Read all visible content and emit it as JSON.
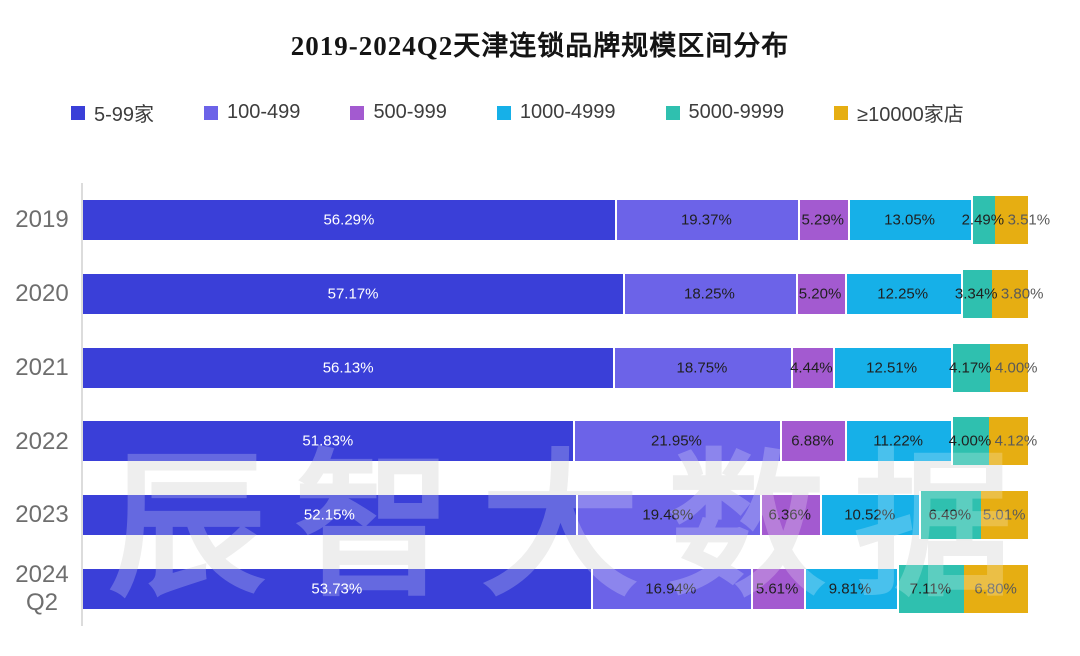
{
  "title": "2019-2024Q2天津连锁品牌规模区间分布",
  "watermark": "辰智大数据",
  "colors": {
    "axis_line": "#dcdcdc",
    "category_label": "#6e6e6e",
    "legend_text": "#3d3d3d",
    "label_on_first": "#ffffff",
    "label_on_mid": "#1f1f1f",
    "label_on_last": "#595959"
  },
  "chart_data": {
    "type": "bar",
    "stacked": true,
    "orientation": "horizontal",
    "title": "2019-2024Q2天津连锁品牌规模区间分布",
    "xlabel": "",
    "ylabel": "",
    "xlim": [
      0,
      100
    ],
    "grid": false,
    "legend_position": "top",
    "value_suffix": "%",
    "categories": [
      "2019",
      "2020",
      "2021",
      "2022",
      "2023",
      "2024\nQ2"
    ],
    "series": [
      {
        "name": "5-99家",
        "color": "#3a3fd8",
        "values": [
          56.29,
          57.17,
          56.13,
          51.83,
          52.15,
          53.73
        ]
      },
      {
        "name": "100-499",
        "color": "#6c63e8",
        "values": [
          19.37,
          18.25,
          18.75,
          21.95,
          19.48,
          16.94
        ]
      },
      {
        "name": "500-999",
        "color": "#a35ad0",
        "values": [
          5.29,
          5.2,
          4.44,
          6.88,
          6.36,
          5.61
        ]
      },
      {
        "name": "1000-4999",
        "color": "#16b0e8",
        "values": [
          13.05,
          12.25,
          12.51,
          11.22,
          10.52,
          9.81
        ]
      },
      {
        "name": "5000-9999",
        "color": "#2fc0af",
        "values": [
          2.49,
          3.34,
          4.17,
          4.0,
          6.49,
          7.11
        ]
      },
      {
        "name": "≥10000家店",
        "color": "#e6ae12",
        "values": [
          3.51,
          3.8,
          4.0,
          4.12,
          5.01,
          6.8
        ]
      }
    ]
  }
}
